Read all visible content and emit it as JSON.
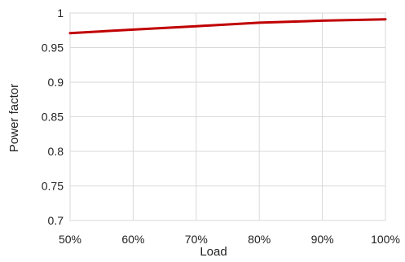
{
  "chart_data": {
    "type": "line",
    "title": "",
    "xlabel": "Load",
    "ylabel": "Power factor",
    "x": [
      0.5,
      0.6,
      0.7,
      0.8,
      0.9,
      1.0
    ],
    "x_tick_labels": [
      "50%",
      "60%",
      "70%",
      "80%",
      "90%",
      "100%"
    ],
    "y_tick_labels": [
      "0.7",
      "0.75",
      "0.8",
      "0.85",
      "0.9",
      "0.95",
      "1"
    ],
    "xlim": [
      0.5,
      1.0
    ],
    "ylim": [
      0.7,
      1.0
    ],
    "y_ticks": [
      0.7,
      0.75,
      0.8,
      0.85,
      0.9,
      0.95,
      1.0
    ],
    "grid": true,
    "series": [
      {
        "color": "#c00000",
        "values": [
          0.971,
          0.976,
          0.981,
          0.986,
          0.989,
          0.991
        ]
      }
    ]
  }
}
